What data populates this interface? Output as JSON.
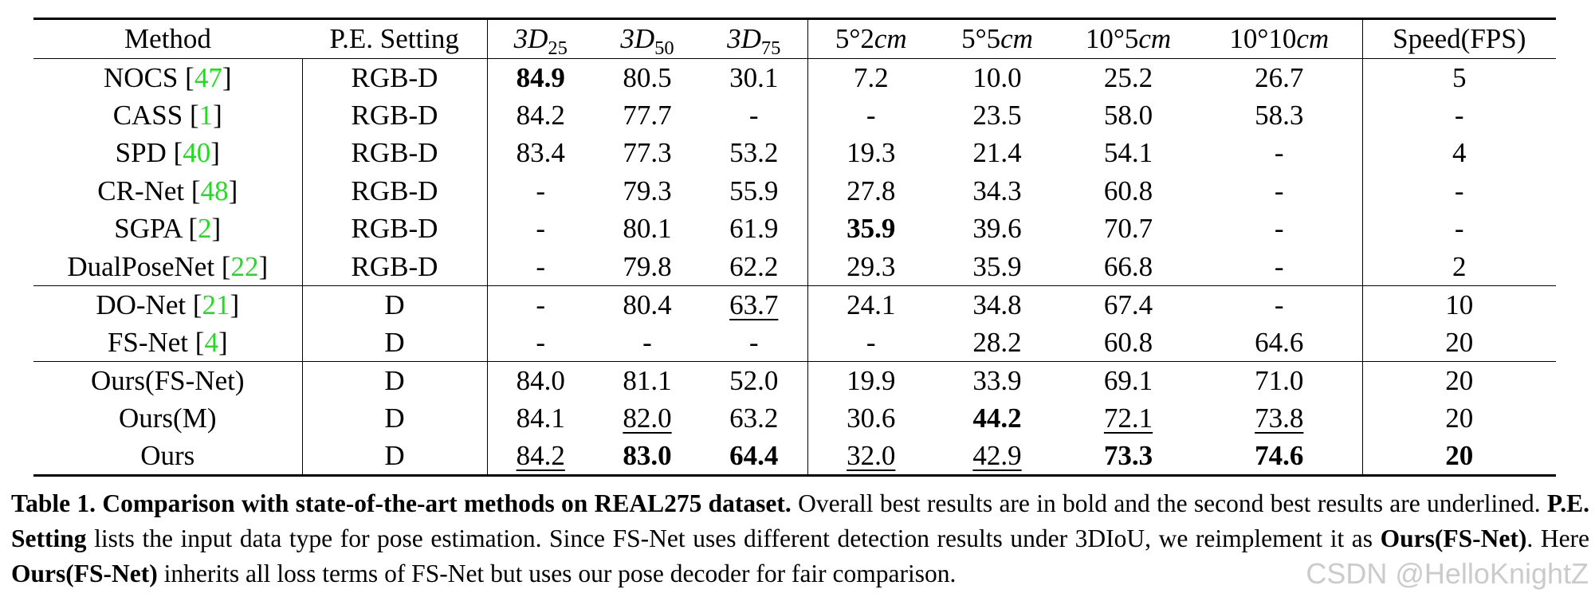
{
  "table": {
    "headers": [
      {
        "text": "Method"
      },
      {
        "text": "P.E. Setting"
      },
      {
        "base": "3D",
        "sub": "25"
      },
      {
        "base": "3D",
        "sub": "50"
      },
      {
        "base": "3D",
        "sub": "75"
      },
      {
        "pre": "5°2",
        "ital": "cm"
      },
      {
        "pre": "5°5",
        "ital": "cm"
      },
      {
        "pre": "10°5",
        "ital": "cm"
      },
      {
        "pre": "10°10",
        "ital": "cm"
      },
      {
        "text": "Speed(FPS)"
      }
    ],
    "rows": [
      {
        "name": "NOCS",
        "ref": "47",
        "setting": "RGB-D",
        "group_start": false,
        "cells": [
          {
            "v": "84.9",
            "bold": true
          },
          {
            "v": "80.5"
          },
          {
            "v": "30.1"
          },
          {
            "v": "7.2"
          },
          {
            "v": "10.0"
          },
          {
            "v": "25.2"
          },
          {
            "v": "26.7"
          },
          {
            "v": "5"
          }
        ]
      },
      {
        "name": "CASS",
        "ref": "1",
        "setting": "RGB-D",
        "group_start": false,
        "cells": [
          {
            "v": "84.2"
          },
          {
            "v": "77.7"
          },
          {
            "v": "-"
          },
          {
            "v": "-"
          },
          {
            "v": "23.5"
          },
          {
            "v": "58.0"
          },
          {
            "v": "58.3"
          },
          {
            "v": "-"
          }
        ]
      },
      {
        "name": "SPD",
        "ref": "40",
        "setting": "RGB-D",
        "group_start": false,
        "cells": [
          {
            "v": "83.4"
          },
          {
            "v": "77.3"
          },
          {
            "v": "53.2"
          },
          {
            "v": "19.3"
          },
          {
            "v": "21.4"
          },
          {
            "v": "54.1"
          },
          {
            "v": "-"
          },
          {
            "v": "4"
          }
        ]
      },
      {
        "name": "CR-Net",
        "ref": "48",
        "setting": "RGB-D",
        "group_start": false,
        "cells": [
          {
            "v": "-"
          },
          {
            "v": "79.3"
          },
          {
            "v": "55.9"
          },
          {
            "v": "27.8"
          },
          {
            "v": "34.3"
          },
          {
            "v": "60.8"
          },
          {
            "v": "-"
          },
          {
            "v": "-"
          }
        ]
      },
      {
        "name": "SGPA",
        "ref": "2",
        "setting": "RGB-D",
        "group_start": false,
        "cells": [
          {
            "v": "-"
          },
          {
            "v": "80.1"
          },
          {
            "v": "61.9"
          },
          {
            "v": "35.9",
            "bold": true
          },
          {
            "v": "39.6"
          },
          {
            "v": "70.7"
          },
          {
            "v": "-"
          },
          {
            "v": "-"
          }
        ]
      },
      {
        "name": "DualPoseNet",
        "ref": "22",
        "setting": "RGB-D",
        "group_start": false,
        "cells": [
          {
            "v": "-"
          },
          {
            "v": "79.8"
          },
          {
            "v": "62.2"
          },
          {
            "v": "29.3"
          },
          {
            "v": "35.9"
          },
          {
            "v": "66.8"
          },
          {
            "v": "-"
          },
          {
            "v": "2"
          }
        ]
      },
      {
        "name": "DO-Net",
        "ref": "21",
        "setting": "D",
        "group_start": true,
        "cells": [
          {
            "v": "-"
          },
          {
            "v": "80.4"
          },
          {
            "v": "63.7",
            "underline": true
          },
          {
            "v": "24.1"
          },
          {
            "v": "34.8"
          },
          {
            "v": "67.4"
          },
          {
            "v": "-"
          },
          {
            "v": "10"
          }
        ]
      },
      {
        "name": "FS-Net",
        "ref": "4",
        "setting": "D",
        "group_start": false,
        "cells": [
          {
            "v": "-"
          },
          {
            "v": "-"
          },
          {
            "v": "-"
          },
          {
            "v": "-"
          },
          {
            "v": "28.2"
          },
          {
            "v": "60.8"
          },
          {
            "v": "64.6"
          },
          {
            "v": "20"
          }
        ]
      },
      {
        "name": "Ours(FS-Net)",
        "ref": "",
        "setting": "D",
        "group_start": true,
        "cells": [
          {
            "v": "84.0"
          },
          {
            "v": "81.1"
          },
          {
            "v": "52.0"
          },
          {
            "v": "19.9"
          },
          {
            "v": "33.9"
          },
          {
            "v": "69.1"
          },
          {
            "v": "71.0"
          },
          {
            "v": "20"
          }
        ]
      },
      {
        "name": "Ours(M)",
        "ref": "",
        "setting": "D",
        "group_start": false,
        "cells": [
          {
            "v": "84.1"
          },
          {
            "v": "82.0",
            "underline": true
          },
          {
            "v": "63.2"
          },
          {
            "v": "30.6"
          },
          {
            "v": "44.2",
            "bold": true
          },
          {
            "v": "72.1",
            "underline": true
          },
          {
            "v": "73.8",
            "underline": true
          },
          {
            "v": "20"
          }
        ]
      },
      {
        "name": "Ours",
        "ref": "",
        "setting": "D",
        "group_start": false,
        "cells": [
          {
            "v": "84.2",
            "underline": true
          },
          {
            "v": "83.0",
            "bold": true
          },
          {
            "v": "64.4",
            "bold": true
          },
          {
            "v": "32.0",
            "underline": true
          },
          {
            "v": "42.9",
            "underline": true
          },
          {
            "v": "73.3",
            "bold": true
          },
          {
            "v": "74.6",
            "bold": true
          },
          {
            "v": "20",
            "bold": true
          }
        ]
      }
    ]
  },
  "caption": {
    "label": "Table 1.",
    "title": "Comparison with state-of-the-art methods on REAL275 dataset.",
    "s1": "Overall best results are in bold and the second best results are underlined.",
    "pe_term": "P.E. Setting",
    "s2": "lists the input data type for pose estimation. Since FS-Net uses different detection results under 3DIoU, we reimplement it as",
    "term1": "Ours(FS-Net)",
    "s3": ". Here",
    "term2": "Ours(FS-Net)",
    "s4": "inherits all loss terms of FS-Net but uses our pose decoder for fair comparison."
  },
  "watermark": "CSDN @HelloKnightZ",
  "colors": {
    "citation": "#1fdd1f",
    "text": "#000000",
    "background": "#ffffff"
  }
}
